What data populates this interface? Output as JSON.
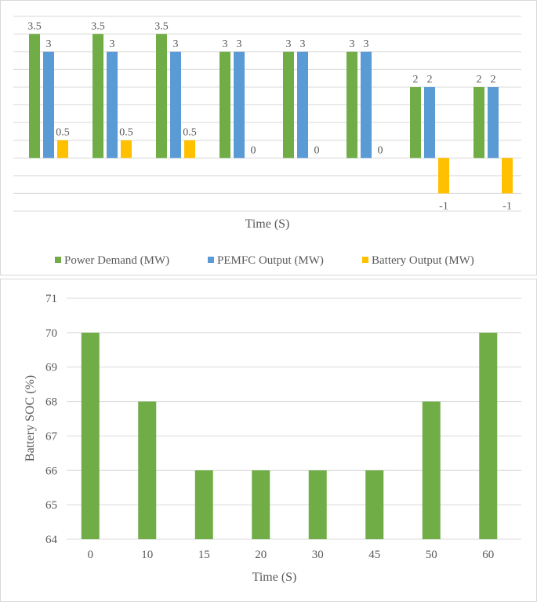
{
  "chart_data": [
    {
      "type": "bar",
      "title": "",
      "xlabel": "Time (S)",
      "ylabel": "",
      "ylim": [
        -1.5,
        4
      ],
      "grid_step": 0.5,
      "categories": [
        "",
        "",
        "",
        "",
        "",
        "",
        "",
        ""
      ],
      "series": [
        {
          "name": "Power Demand (MW)",
          "color": "#70ad47",
          "values": [
            3.5,
            3.5,
            3.5,
            3,
            3,
            3,
            2,
            2
          ],
          "labels": [
            "3.5",
            "3.5",
            "3.5",
            "3",
            "3",
            "3",
            "2",
            "2"
          ]
        },
        {
          "name": "PEMFC Output (MW)",
          "color": "#5b9bd5",
          "values": [
            3,
            3,
            3,
            3,
            3,
            3,
            2,
            2
          ],
          "labels": [
            "3",
            "3",
            "3",
            "3",
            "3",
            "3",
            "2",
            "2"
          ]
        },
        {
          "name": "Battery Output (MW)",
          "color": "#ffc000",
          "values": [
            0.5,
            0.5,
            0.5,
            0,
            0,
            0,
            -1,
            -1
          ],
          "labels": [
            "0.5",
            "0.5",
            "0.5",
            "0",
            "0",
            "0",
            "-1",
            "-1"
          ]
        }
      ],
      "legend": "bottom",
      "grid": true
    },
    {
      "type": "bar",
      "title": "",
      "xlabel": "Time (S)",
      "ylabel": "Battery SOC (%)",
      "ylim": [
        64,
        71
      ],
      "yticks": [
        "64",
        "65",
        "66",
        "67",
        "68",
        "69",
        "70",
        "71"
      ],
      "categories": [
        "0",
        "10",
        "15",
        "20",
        "30",
        "45",
        "50",
        "60"
      ],
      "series": [
        {
          "name": "Battery SOC (%)",
          "color": "#70ad47",
          "values": [
            70,
            68,
            66,
            66,
            66,
            66,
            68,
            70
          ]
        }
      ],
      "grid": true
    }
  ]
}
